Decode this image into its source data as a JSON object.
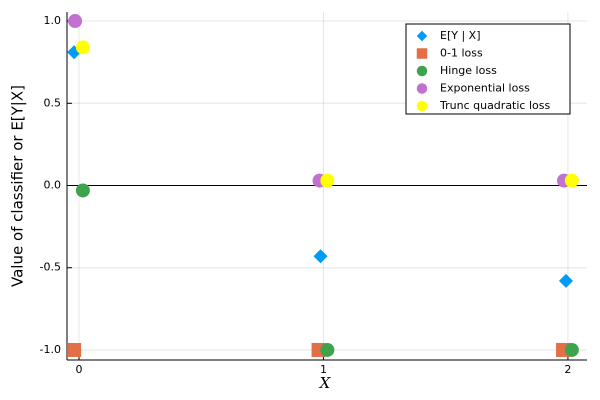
{
  "chart_data": {
    "type": "scatter",
    "xlabel": "X",
    "ylabel": "Value of classifier or E[Y|X]",
    "xlim": [
      -0.049,
      2.078
    ],
    "ylim": [
      -1.061,
      1.055
    ],
    "xticks": [
      0,
      1,
      2
    ],
    "yticks": [
      {
        "value": -1,
        "label": "-1.0"
      },
      {
        "value": -0.5,
        "label": "-0.5"
      },
      {
        "value": 0,
        "label": "0.0"
      },
      {
        "value": 0.5,
        "label": "0.5"
      },
      {
        "value": 1,
        "label": "1.0"
      }
    ],
    "grid": true,
    "hlines": [
      0
    ],
    "legend": "top-right",
    "series": [
      {
        "name": "E[Y | X]",
        "color": "#009af9",
        "marker": "diamond",
        "x": [
          -0.02,
          0.988,
          1.992
        ],
        "values": [
          0.81,
          -0.43,
          -0.58
        ]
      },
      {
        "name": "0-1 loss",
        "color": "#e26f46",
        "marker": "square",
        "x": [
          -0.02,
          0.98,
          1.98
        ],
        "values": [
          -1,
          -1,
          -1
        ]
      },
      {
        "name": "Hinge loss",
        "color": "#3da44d",
        "marker": "circle",
        "x": [
          0.016,
          1.016,
          2.016
        ],
        "values": [
          -0.03,
          -1,
          -1
        ]
      },
      {
        "name": "Exponential loss",
        "color": "#c271d2",
        "marker": "circle",
        "x": [
          -0.016,
          0.984,
          1.984
        ],
        "values": [
          1.0,
          0.03,
          0.03
        ]
      },
      {
        "name": "Trunc quadratic loss",
        "color": "#ffff00",
        "marker": "circle",
        "x": [
          0.016,
          1.016,
          2.016
        ],
        "values": [
          0.84,
          0.03,
          0.03
        ]
      }
    ]
  }
}
